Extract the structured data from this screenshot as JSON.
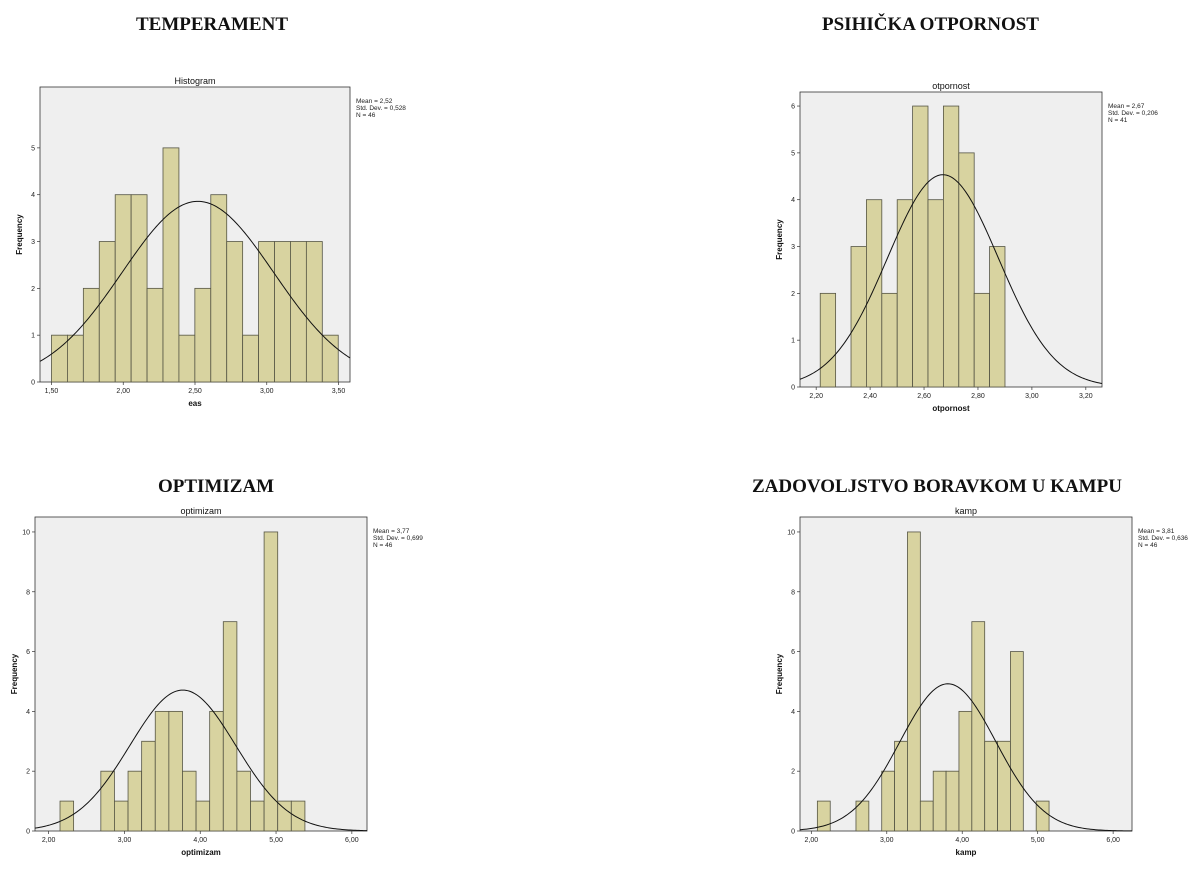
{
  "headings": {
    "temperament": "TEMPERAMENT",
    "psih": "PSIHIČKA OTPORNOST",
    "optimizam": "OPTIMIZAM",
    "kamp": "ZADOVOLJSTVO BORAVKOM U KAMPU"
  },
  "colors": {
    "bar_fill": "#d8d3a0",
    "bar_stroke": "#555544",
    "plot_bg": "#efefef",
    "curve": "#111111"
  },
  "chart_data": [
    {
      "type": "bar",
      "subtype": "histogram",
      "title": "Histogram",
      "xlabel": "eas",
      "ylabel": "Frequency",
      "xlim": [
        1.42,
        3.58
      ],
      "ylim": [
        0,
        6.3
      ],
      "xticks": [
        1.5,
        2.0,
        2.5,
        3.0,
        3.5
      ],
      "xtick_labels": [
        "1,50",
        "2,00",
        "2,50",
        "3,00",
        "3,50"
      ],
      "yticks": [
        0,
        1,
        2,
        3,
        4,
        5
      ],
      "ytick_labels": [
        "0",
        "1",
        "2",
        "3",
        "4",
        "5"
      ],
      "bin_start": 1.5,
      "bin_width": 0.111,
      "values": [
        1,
        1,
        2,
        3,
        4,
        4,
        2,
        5,
        1,
        2,
        4,
        3,
        1,
        3,
        3,
        3,
        3,
        1
      ],
      "normal_curve": {
        "mean": 2.52,
        "sd": 0.528,
        "n": 46
      },
      "stats_lines": [
        "Mean = 2,52",
        "Std. Dev. = 0,528",
        "N = 46"
      ]
    },
    {
      "type": "bar",
      "subtype": "histogram",
      "title": "otpornost",
      "xlabel": "otpornost",
      "ylabel": "Frequency",
      "xlim": [
        2.14,
        3.26
      ],
      "ylim": [
        0,
        6.3
      ],
      "xticks": [
        2.2,
        2.4,
        2.6,
        2.8,
        3.0,
        3.2
      ],
      "xtick_labels": [
        "2,20",
        "2,40",
        "2,60",
        "2,80",
        "3,00",
        "3,20"
      ],
      "yticks": [
        0,
        1,
        2,
        3,
        4,
        5,
        6
      ],
      "ytick_labels": [
        "0",
        "1",
        "2",
        "3",
        "4",
        "5",
        "6"
      ],
      "bin_start": 2.215,
      "bin_width": 0.0571,
      "values": [
        2,
        0,
        3,
        4,
        2,
        4,
        6,
        4,
        6,
        5,
        2,
        3
      ],
      "normal_curve": {
        "mean": 2.67,
        "sd": 0.206,
        "n": 41
      },
      "stats_lines": [
        "Mean = 2,67",
        "Std. Dev. = 0,206",
        "N = 41"
      ]
    },
    {
      "type": "bar",
      "subtype": "histogram",
      "title": "optimizam",
      "xlabel": "optimizam",
      "ylabel": "Frequency",
      "xlim": [
        1.82,
        6.2
      ],
      "ylim": [
        0,
        10.5
      ],
      "xticks": [
        2,
        3,
        4,
        5,
        6
      ],
      "xtick_labels": [
        "2,00",
        "3,00",
        "4,00",
        "5,00",
        "6,00"
      ],
      "yticks": [
        0,
        2,
        4,
        6,
        8,
        10
      ],
      "ytick_labels": [
        "0",
        "2",
        "4",
        "6",
        "8",
        "10"
      ],
      "bin_start": 2.15,
      "bin_width": 0.1795,
      "values": [
        1,
        0,
        0,
        2,
        1,
        2,
        3,
        4,
        4,
        2,
        1,
        4,
        7,
        2,
        1,
        10,
        1,
        1
      ],
      "normal_curve": {
        "mean": 3.77,
        "sd": 0.699,
        "n": 46
      },
      "stats_lines": [
        "Mean = 3,77",
        "Std. Dev. = 0,699",
        "N = 46"
      ]
    },
    {
      "type": "bar",
      "subtype": "histogram",
      "title": "kamp",
      "xlabel": "kamp",
      "ylabel": "Frequency",
      "xlim": [
        1.85,
        6.25
      ],
      "ylim": [
        0,
        10.5
      ],
      "xticks": [
        2,
        3,
        4,
        5,
        6
      ],
      "xtick_labels": [
        "2,00",
        "3,00",
        "4,00",
        "5,00",
        "6,00"
      ],
      "yticks": [
        0,
        2,
        4,
        6,
        8,
        10
      ],
      "ytick_labels": [
        "0",
        "2",
        "4",
        "6",
        "8",
        "10"
      ],
      "bin_start": 2.08,
      "bin_width": 0.1706,
      "values": [
        1,
        0,
        0,
        1,
        0,
        2,
        3,
        10,
        1,
        2,
        2,
        4,
        7,
        3,
        3,
        6,
        0,
        1
      ],
      "normal_curve": {
        "mean": 3.81,
        "sd": 0.636,
        "n": 46
      },
      "stats_lines": [
        "Mean = 3,81",
        "Std. Dev. = 0,636",
        "N = 46"
      ]
    }
  ]
}
